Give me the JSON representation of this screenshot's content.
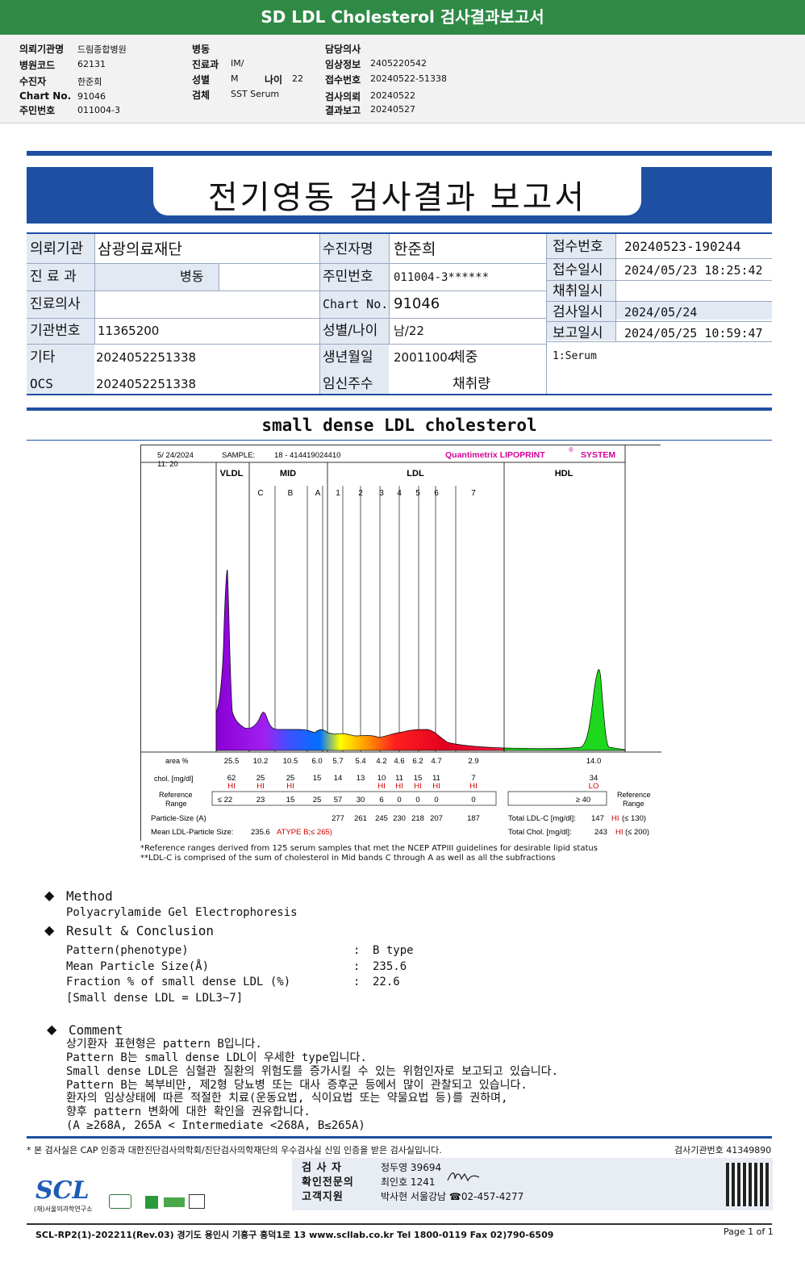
{
  "banner": {
    "title": "SD LDL Cholesterol 검사결과보고서"
  },
  "top_info": {
    "col1": [
      {
        "label": "의뢰기관명",
        "value": "드림종합병원"
      },
      {
        "label": "병원코드",
        "value": "62131"
      },
      {
        "label": "수진자",
        "value": "한준희"
      },
      {
        "label": "Chart No.",
        "value": "91046"
      },
      {
        "label": "주민번호",
        "value": "011004-3"
      }
    ],
    "col2": [
      {
        "label": "병동",
        "value": ""
      },
      {
        "label": "진료과",
        "value": "IM/"
      },
      {
        "label": "성별",
        "value": "M"
      },
      {
        "label": "검체",
        "value": "SST Serum"
      }
    ],
    "age_label": "나이",
    "age_value": "22",
    "col3": [
      {
        "label": "담당의사",
        "value": ""
      },
      {
        "label": "임상정보",
        "value": "2405220542"
      },
      {
        "label": "접수번호",
        "value": "20240522-51338"
      },
      {
        "label": "검사의뢰",
        "value": "20240522"
      },
      {
        "label": "결과보고",
        "value": "20240527"
      }
    ]
  },
  "report": {
    "title": "전기영동 검사결과 보고서"
  },
  "patient": {
    "inst_label": "의뢰기관",
    "inst_value": "삼광의료재단",
    "dept_label": "진 료 과",
    "dept_value": "병동",
    "doctor_label": "진료의사",
    "doctor_value": "",
    "inst_no_label": "기관번호",
    "inst_no_value": "11365200",
    "etc_label": "기타",
    "etc_value": "2024052251338",
    "ocs_label": "OCS",
    "ocs_value": "2024052251338",
    "name_label": "수진자명",
    "name_value": "한준희",
    "rrn_label": "주민번호",
    "rrn_value": "011004-3******",
    "chart_label": "Chart No.",
    "chart_value": "91046",
    "sexage_label": "성별/나이",
    "sexage_value": "남/22",
    "birth_label": "생년월일",
    "birth_value": "20011004",
    "weight_label": "체중",
    "weight_value": "",
    "preg_label": "임신주수",
    "preg_value": "",
    "volume_label": "채취량",
    "volume_value": "",
    "recv_no_label": "접수번호",
    "recv_no_value": "20240523-190244",
    "recv_date_label": "접수일시",
    "recv_date_value": "2024/05/23 18:25:42",
    "collect_label": "채취일시",
    "collect_value": "",
    "test_date_label": "검사일시",
    "test_date_value": "2024/05/24",
    "report_date_label": "보고일시",
    "report_date_value": "2024/05/25 10:59:47",
    "specimen": "1:Serum"
  },
  "section": {
    "title": "small dense LDL cholesterol"
  },
  "chart_data": {
    "type": "area",
    "date": "5/ 24/2024",
    "time": "11: 20",
    "sample_label": "SAMPLE:",
    "sample_value": "18 - 414419024410",
    "brand": "Quantimetrix LIPOPRINT",
    "brand_mark": "®",
    "brand_suffix": "SYSTEM",
    "groups": [
      "VLDL",
      "MID",
      "LDL",
      "HDL"
    ],
    "bands": [
      "C",
      "B",
      "A",
      "1",
      "2",
      "3",
      "4",
      "5",
      "6",
      "7"
    ],
    "row_labels": {
      "area": "area %",
      "chol": "chol. [mg/dl]",
      "ref1": "Reference",
      "ref2": "Range",
      "particle": "Particle-Size (A)",
      "mean": "Mean LDL-Particle Size:",
      "ref_right1": "Reference",
      "ref_right2": "Range"
    },
    "area_pct": [
      "25.5",
      "10.2",
      "10.5",
      "6.0",
      "5.7",
      "5.4",
      "4.2",
      "4.6",
      "6.2",
      "4.7",
      "2.9",
      "14.0"
    ],
    "chol": [
      "62",
      "25",
      "25",
      "15",
      "14",
      "13",
      "10",
      "11",
      "15",
      "11",
      "7",
      "34"
    ],
    "flags": [
      "HI",
      "HI",
      "HI",
      "",
      "",
      "",
      "HI",
      "HI",
      "HI",
      "HI",
      "HI",
      "LO"
    ],
    "ref_range": [
      "≤ 22",
      "23",
      "15",
      "25",
      "57",
      "30",
      "6",
      "0",
      "0",
      "0",
      "0",
      "≥ 40"
    ],
    "particle_size": [
      "277",
      "261",
      "245",
      "230",
      "218",
      "207",
      "187"
    ],
    "mean_size": "235.6",
    "mean_type": "ATYPE B;≤ 265)",
    "total_ldl_label": "Total LDL-C [mg/dl]:",
    "total_ldl_value": "147",
    "total_ldl_flag": "HI",
    "total_ldl_ref": "(≤ 130)",
    "total_chol_label": "Total Chol. [mg/dl]:",
    "total_chol_value": "243",
    "total_chol_flag": "HI",
    "total_chol_ref": "(≤ 200)"
  },
  "footnotes": [
    "*Reference ranges derived from 125 serum samples that met the NCEP ATPIII guidelines for desirable lipid status",
    "**LDL-C is comprised of the sum of cholesterol in Mid bands C through A as well as all the subfractions"
  ],
  "method": {
    "head": "Method",
    "text": "Polyacrylamide Gel Electrophoresis"
  },
  "result": {
    "head": "Result & Conclusion",
    "rows": [
      {
        "label": "Pattern(phenotype)",
        "value": "B type"
      },
      {
        "label": "Mean Particle Size(Å)",
        "value": "235.6"
      },
      {
        "label": "Fraction % of small dense LDL (%)",
        "value": "22.6"
      }
    ],
    "note": "[Small dense LDL = LDL3~7]"
  },
  "comment": {
    "head": "Comment",
    "lines": [
      "상기환자 표현형은 pattern B입니다.",
      "Pattern B는 small dense LDL이 우세한 type입니다.",
      "Small dense LDL은 심혈관 질환의 위험도를 증가시킬 수 있는 위험인자로 보고되고 있습니다.",
      "Pattern B는 복부비만, 제2형 당뇨병 또는 대사 증후군 등에서 많이 관찰되고 있습니다.",
      "환자의 임상상태에 따른 적절한 치료(운동요법, 식이요법 또는 약물요법 등)를 권하며,",
      "향후 pattern 변화에 대한 확인을 권유합니다.",
      "(A ≥268A, 265A < Intermediate <268A, B≤265A)"
    ]
  },
  "footer": {
    "note": "* 본 검사실은 CAP 인증과 대한진단검사의학회/진단검사의학재단의 우수검사실 신임 인증을 받은 검사실입니다.",
    "inst_no": "검사기관번호 41349890",
    "staff": [
      {
        "label": "검 사 자",
        "value": "정두영 39694"
      },
      {
        "label": "확인전문의",
        "value": "최인호 1241"
      },
      {
        "label": "고객지원",
        "value": "박사현 서울강남 ☎02-457-4277"
      }
    ],
    "logo": "SCL",
    "logo_sub": "(재)서울의과학연구소",
    "address": "SCL-RP2(1)-202211(Rev.03)  경기도 용인시 기흥구 흥덕1로 13  www.scllab.co.kr  Tel 1800-0119  Fax 02)790-6509",
    "page": "Page 1 of 1"
  }
}
